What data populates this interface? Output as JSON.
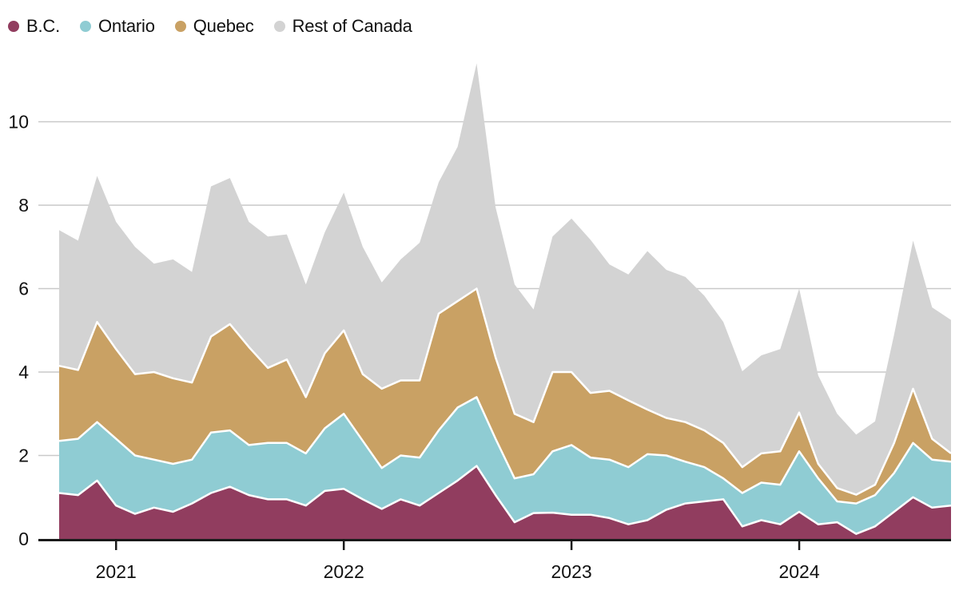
{
  "page": {
    "background": "#ffffff"
  },
  "legend": {
    "items": [
      {
        "label": "B.C.",
        "color": "#913d5f"
      },
      {
        "label": "Ontario",
        "color": "#8fccd3"
      },
      {
        "label": "Quebec",
        "color": "#c9a164"
      },
      {
        "label": "Rest of Canada",
        "color": "#d3d3d3"
      }
    ]
  },
  "chart_data": {
    "type": "area",
    "stacked": true,
    "title": "",
    "xlabel": "",
    "ylabel": "",
    "x": [
      "2020-10",
      "2020-11",
      "2020-12",
      "2021-01",
      "2021-02",
      "2021-03",
      "2021-04",
      "2021-05",
      "2021-06",
      "2021-07",
      "2021-08",
      "2021-09",
      "2021-10",
      "2021-11",
      "2021-12",
      "2022-01",
      "2022-02",
      "2022-03",
      "2022-04",
      "2022-05",
      "2022-06",
      "2022-07",
      "2022-08",
      "2022-09",
      "2022-10",
      "2022-11",
      "2022-12",
      "2023-01",
      "2023-02",
      "2023-03",
      "2023-04",
      "2023-05",
      "2023-06",
      "2023-07",
      "2023-08",
      "2023-09",
      "2023-10",
      "2023-11",
      "2023-12",
      "2024-01",
      "2024-02",
      "2024-03",
      "2024-04",
      "2024-05",
      "2024-06",
      "2024-07",
      "2024-08",
      "2024-09"
    ],
    "series": [
      {
        "name": "B.C.",
        "color": "#913d5f",
        "values": [
          1.1,
          1.05,
          1.4,
          0.8,
          0.6,
          0.75,
          0.65,
          0.85,
          1.1,
          1.25,
          1.05,
          0.95,
          0.95,
          0.8,
          1.15,
          1.2,
          0.95,
          0.72,
          0.95,
          0.8,
          1.1,
          1.4,
          1.75,
          1.05,
          0.4,
          0.62,
          0.63,
          0.58,
          0.58,
          0.5,
          0.35,
          0.45,
          0.7,
          0.85,
          0.9,
          0.95,
          0.3,
          0.45,
          0.35,
          0.65,
          0.35,
          0.4,
          0.12,
          0.3,
          0.65,
          1.0,
          0.75,
          0.8
        ]
      },
      {
        "name": "Ontario",
        "color": "#8fccd3",
        "values": [
          1.25,
          1.35,
          1.4,
          1.6,
          1.4,
          1.15,
          1.15,
          1.05,
          1.45,
          1.35,
          1.2,
          1.35,
          1.35,
          1.25,
          1.5,
          1.8,
          1.4,
          0.98,
          1.05,
          1.15,
          1.5,
          1.75,
          1.65,
          1.35,
          1.05,
          0.93,
          1.47,
          1.67,
          1.37,
          1.4,
          1.37,
          1.58,
          1.3,
          1.0,
          0.82,
          0.5,
          0.8,
          0.9,
          0.95,
          1.45,
          1.1,
          0.5,
          0.73,
          0.75,
          0.93,
          1.3,
          1.15,
          1.05
        ]
      },
      {
        "name": "Quebec",
        "color": "#c9a164",
        "values": [
          1.8,
          1.65,
          2.4,
          2.15,
          1.95,
          2.1,
          2.05,
          1.85,
          2.3,
          2.55,
          2.35,
          1.8,
          2.0,
          1.35,
          1.8,
          2.0,
          1.6,
          1.9,
          1.8,
          1.85,
          2.8,
          2.55,
          2.6,
          1.95,
          1.55,
          1.25,
          1.9,
          1.75,
          1.55,
          1.65,
          1.6,
          1.07,
          0.9,
          0.95,
          0.88,
          0.85,
          0.62,
          0.7,
          0.8,
          0.93,
          0.35,
          0.32,
          0.21,
          0.25,
          0.72,
          1.3,
          0.5,
          0.2
        ]
      },
      {
        "name": "Rest of Canada",
        "color": "#d3d3d3",
        "values": [
          3.25,
          3.1,
          3.5,
          3.05,
          3.05,
          2.6,
          2.85,
          2.65,
          3.6,
          3.5,
          3.0,
          3.15,
          3.0,
          2.7,
          2.9,
          3.3,
          3.05,
          2.55,
          2.9,
          3.3,
          3.15,
          3.7,
          5.4,
          3.6,
          3.1,
          2.7,
          3.25,
          3.68,
          3.67,
          3.03,
          3.02,
          3.8,
          3.55,
          3.48,
          3.23,
          2.9,
          2.3,
          2.35,
          2.45,
          2.97,
          2.12,
          1.78,
          1.44,
          1.52,
          2.6,
          3.55,
          3.15,
          3.2
        ]
      }
    ],
    "ylim": [
      0,
      11.5
    ],
    "yticks": [
      0,
      2,
      4,
      6,
      8,
      10
    ],
    "ytick_labels": [
      "0",
      "2",
      "4",
      "6",
      "8",
      "10"
    ],
    "xtick_months": [
      "2021-01",
      "2022-01",
      "2023-01",
      "2024-01"
    ],
    "xtick_labels": [
      "2021",
      "2022",
      "2023",
      "2024"
    ],
    "grid": true,
    "legend_position": "top-left",
    "styles": {
      "grid_color": "#c9c9c9",
      "axis_color": "#1a1a1a",
      "text_color": "#111111",
      "separator_color": "#ffffff"
    }
  }
}
